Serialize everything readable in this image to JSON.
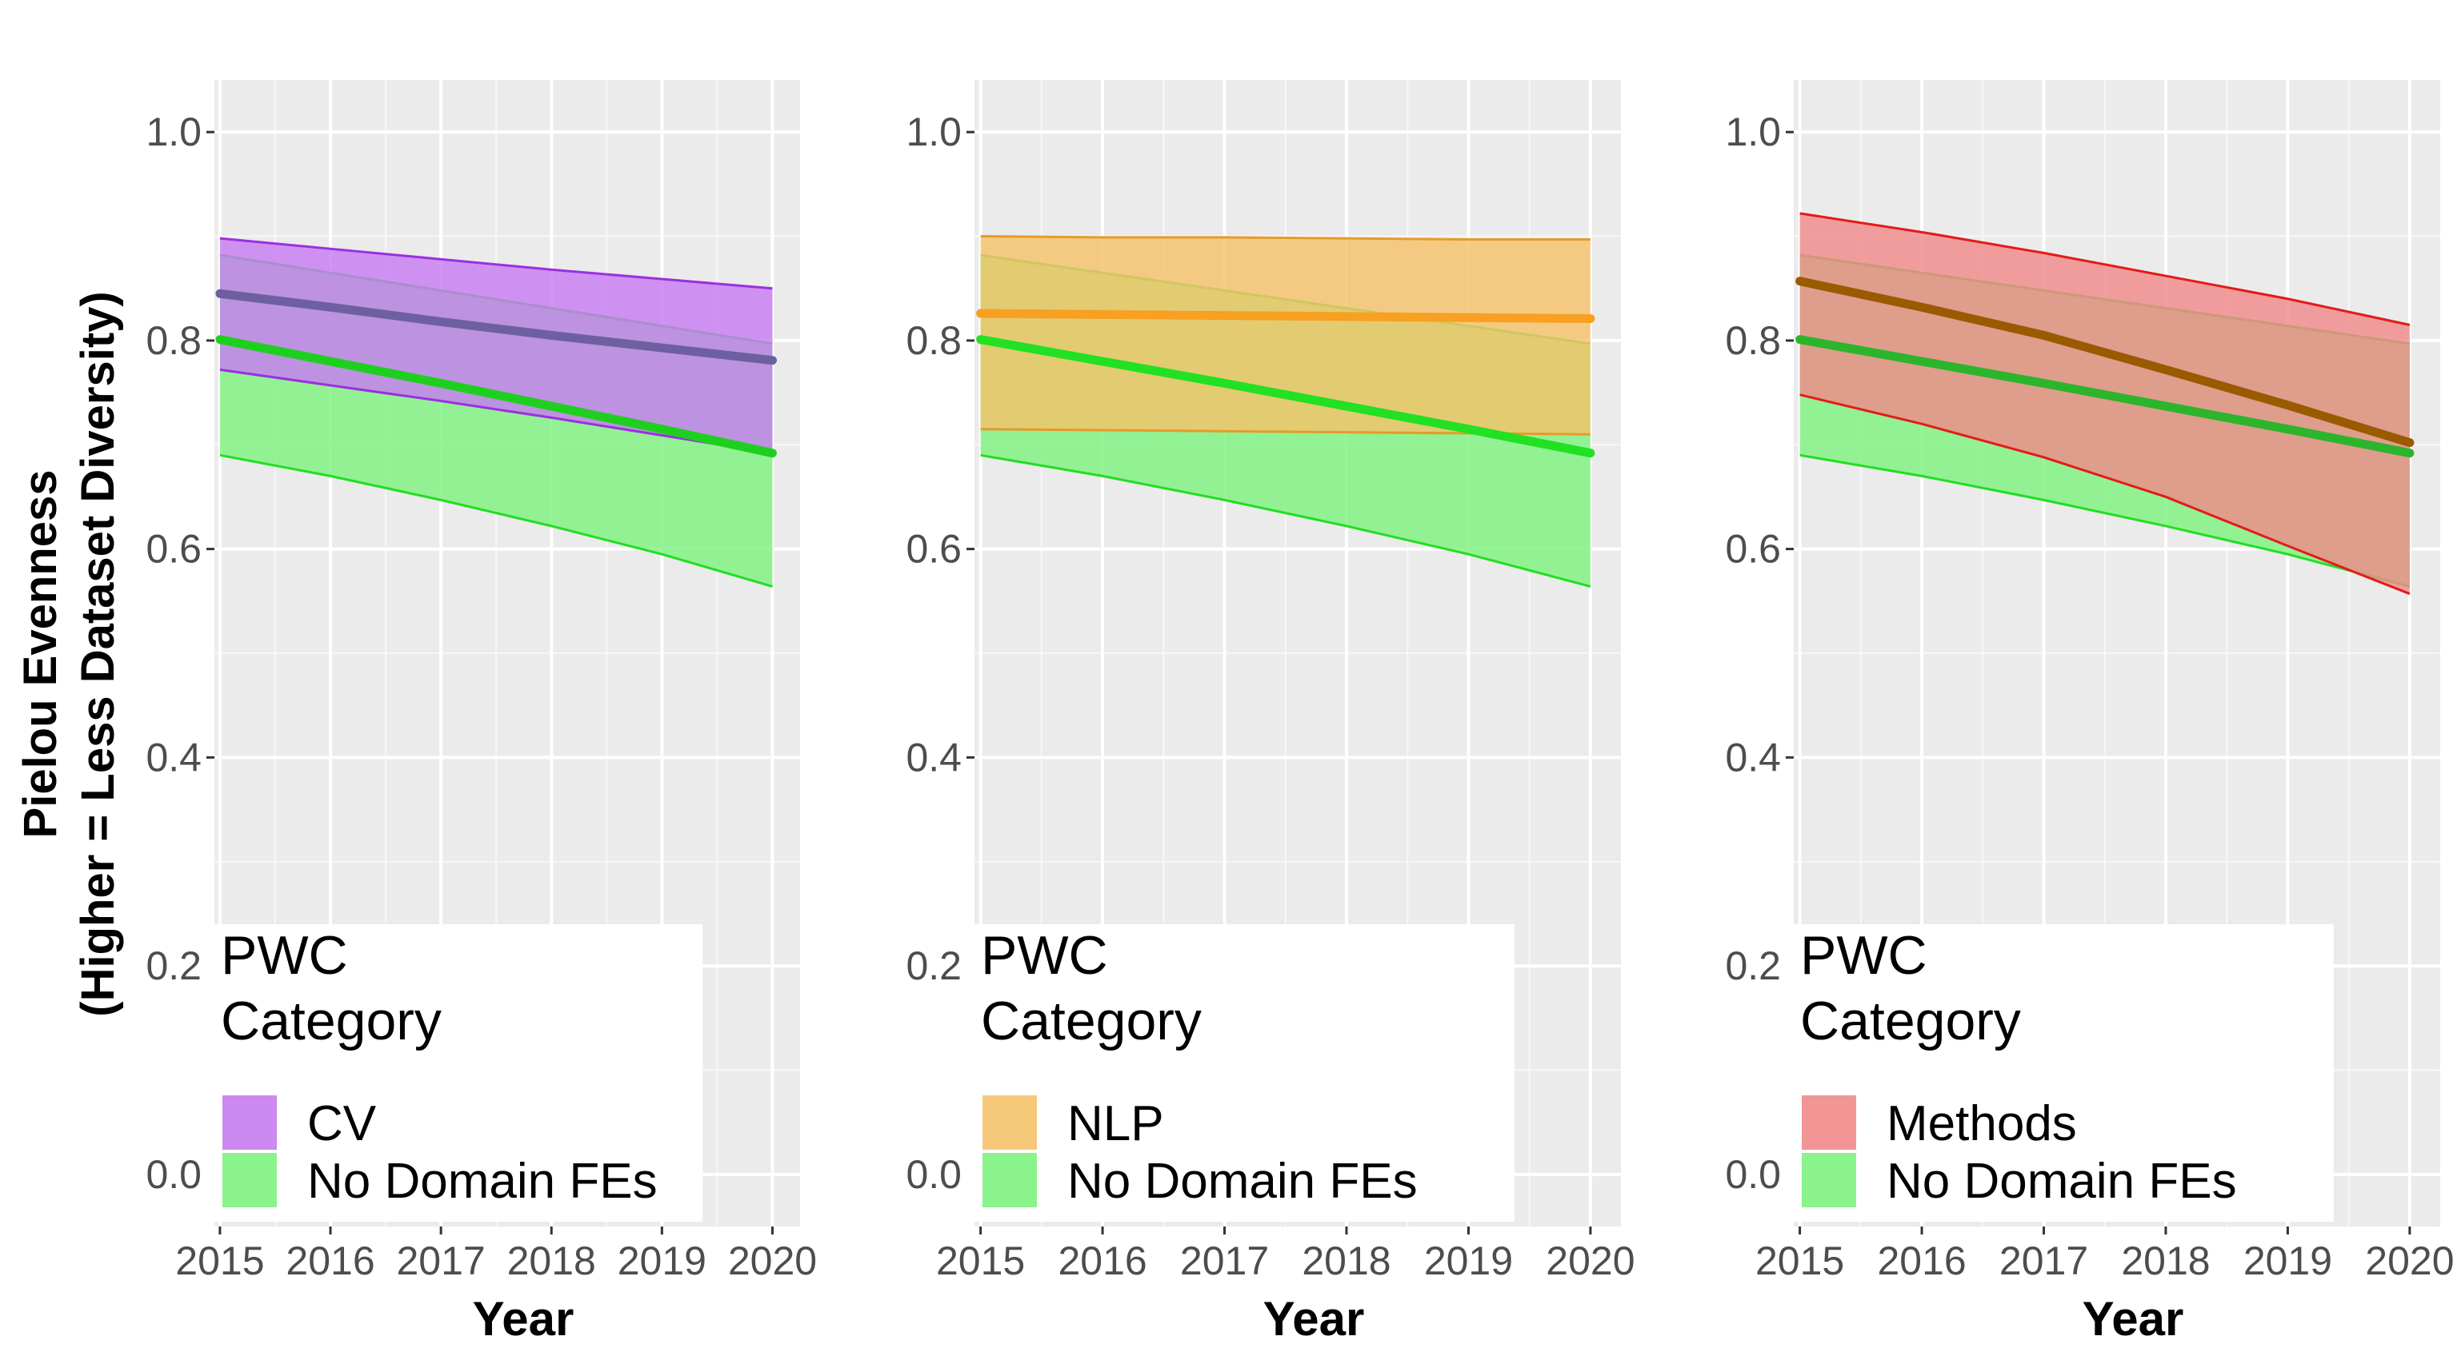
{
  "chart_data": [
    {
      "type": "area",
      "title": "",
      "xlabel": "Year",
      "ylabel": "Pielou Evenness",
      "ylabel_line2": "(Higher = Less Dataset Diversity)",
      "x": [
        2015,
        2016,
        2017,
        2018,
        2019,
        2020
      ],
      "xlim": [
        2014.95,
        2020.25
      ],
      "ylim": [
        -0.05,
        1.05
      ],
      "y_ticks": [
        0.0,
        0.2,
        0.4,
        0.6,
        0.8,
        1.0
      ],
      "y_tick_labels": [
        "0.0",
        "0.2",
        "0.4",
        "0.6",
        "0.8",
        "1.0"
      ],
      "grid": true,
      "legend": {
        "title_line1": "PWC",
        "title_line2": "Category",
        "position": "bottom-left"
      },
      "series": [
        {
          "name": "CV",
          "fill": "#c77cf1",
          "line": "#6e60a0",
          "edge": "#9a30e0",
          "fit": [
            0.845,
            0.832,
            0.818,
            0.805,
            0.793,
            0.781
          ],
          "lower": [
            0.772,
            0.757,
            0.742,
            0.726,
            0.709,
            0.692
          ],
          "upper": [
            0.898,
            0.888,
            0.878,
            0.868,
            0.859,
            0.85
          ]
        },
        {
          "name": "No Domain FEs",
          "fill": "#7ef27e",
          "line": "#1fcf1f",
          "edge": "#22dd22",
          "fit": [
            0.801,
            0.78,
            0.759,
            0.737,
            0.715,
            0.692
          ],
          "lower": [
            0.69,
            0.67,
            0.647,
            0.622,
            0.595,
            0.564
          ],
          "upper": [
            0.882,
            0.865,
            0.848,
            0.831,
            0.814,
            0.797
          ]
        }
      ]
    },
    {
      "type": "area",
      "title": "",
      "xlabel": "Year",
      "ylabel": "",
      "x": [
        2015,
        2016,
        2017,
        2018,
        2019,
        2020
      ],
      "xlim": [
        2014.95,
        2020.25
      ],
      "ylim": [
        -0.05,
        1.05
      ],
      "y_ticks": [
        0.0,
        0.2,
        0.4,
        0.6,
        0.8,
        1.0
      ],
      "y_tick_labels": [
        "0.0",
        "0.2",
        "0.4",
        "0.6",
        "0.8",
        "1.0"
      ],
      "grid": true,
      "legend": {
        "title_line1": "PWC",
        "title_line2": "Category",
        "position": "bottom-left"
      },
      "series": [
        {
          "name": "NLP",
          "fill": "#f5c26b",
          "line": "#f7a021",
          "edge": "#e69a2a",
          "fit": [
            0.826,
            0.825,
            0.824,
            0.823,
            0.822,
            0.821
          ],
          "lower": [
            0.715,
            0.714,
            0.713,
            0.712,
            0.711,
            0.71
          ],
          "upper": [
            0.9,
            0.899,
            0.899,
            0.898,
            0.897,
            0.897
          ]
        },
        {
          "name": "No Domain FEs",
          "fill": "#7ef27e",
          "line": "#22e022",
          "edge": "#22dd22",
          "fit": [
            0.801,
            0.78,
            0.759,
            0.737,
            0.715,
            0.692
          ],
          "lower": [
            0.69,
            0.67,
            0.647,
            0.622,
            0.595,
            0.564
          ],
          "upper": [
            0.882,
            0.865,
            0.848,
            0.831,
            0.814,
            0.797
          ]
        }
      ]
    },
    {
      "type": "area",
      "title": "",
      "xlabel": "Year",
      "ylabel": "",
      "x": [
        2015,
        2016,
        2017,
        2018,
        2019,
        2020
      ],
      "xlim": [
        2014.95,
        2020.25
      ],
      "ylim": [
        -0.05,
        1.05
      ],
      "y_ticks": [
        0.0,
        0.2,
        0.4,
        0.6,
        0.8,
        1.0
      ],
      "y_tick_labels": [
        "0.0",
        "0.2",
        "0.4",
        "0.6",
        "0.8",
        "1.0"
      ],
      "grid": true,
      "legend": {
        "title_line1": "PWC",
        "title_line2": "Category",
        "position": "bottom-left"
      },
      "series": [
        {
          "name": "Methods",
          "fill": "#f08a8a",
          "line": "#9a5a00",
          "edge": "#e41a1a",
          "fit": [
            0.857,
            0.832,
            0.805,
            0.772,
            0.738,
            0.702
          ],
          "lower": [
            0.748,
            0.72,
            0.688,
            0.65,
            0.603,
            0.557
          ],
          "upper": [
            0.922,
            0.904,
            0.884,
            0.862,
            0.84,
            0.815
          ]
        },
        {
          "name": "No Domain FEs",
          "fill": "#7ef27e",
          "line": "#2cb52c",
          "edge": "#22dd22",
          "fit": [
            0.801,
            0.78,
            0.759,
            0.737,
            0.715,
            0.692
          ],
          "lower": [
            0.69,
            0.67,
            0.647,
            0.622,
            0.595,
            0.564
          ],
          "upper": [
            0.882,
            0.865,
            0.848,
            0.831,
            0.814,
            0.797
          ]
        }
      ]
    }
  ]
}
